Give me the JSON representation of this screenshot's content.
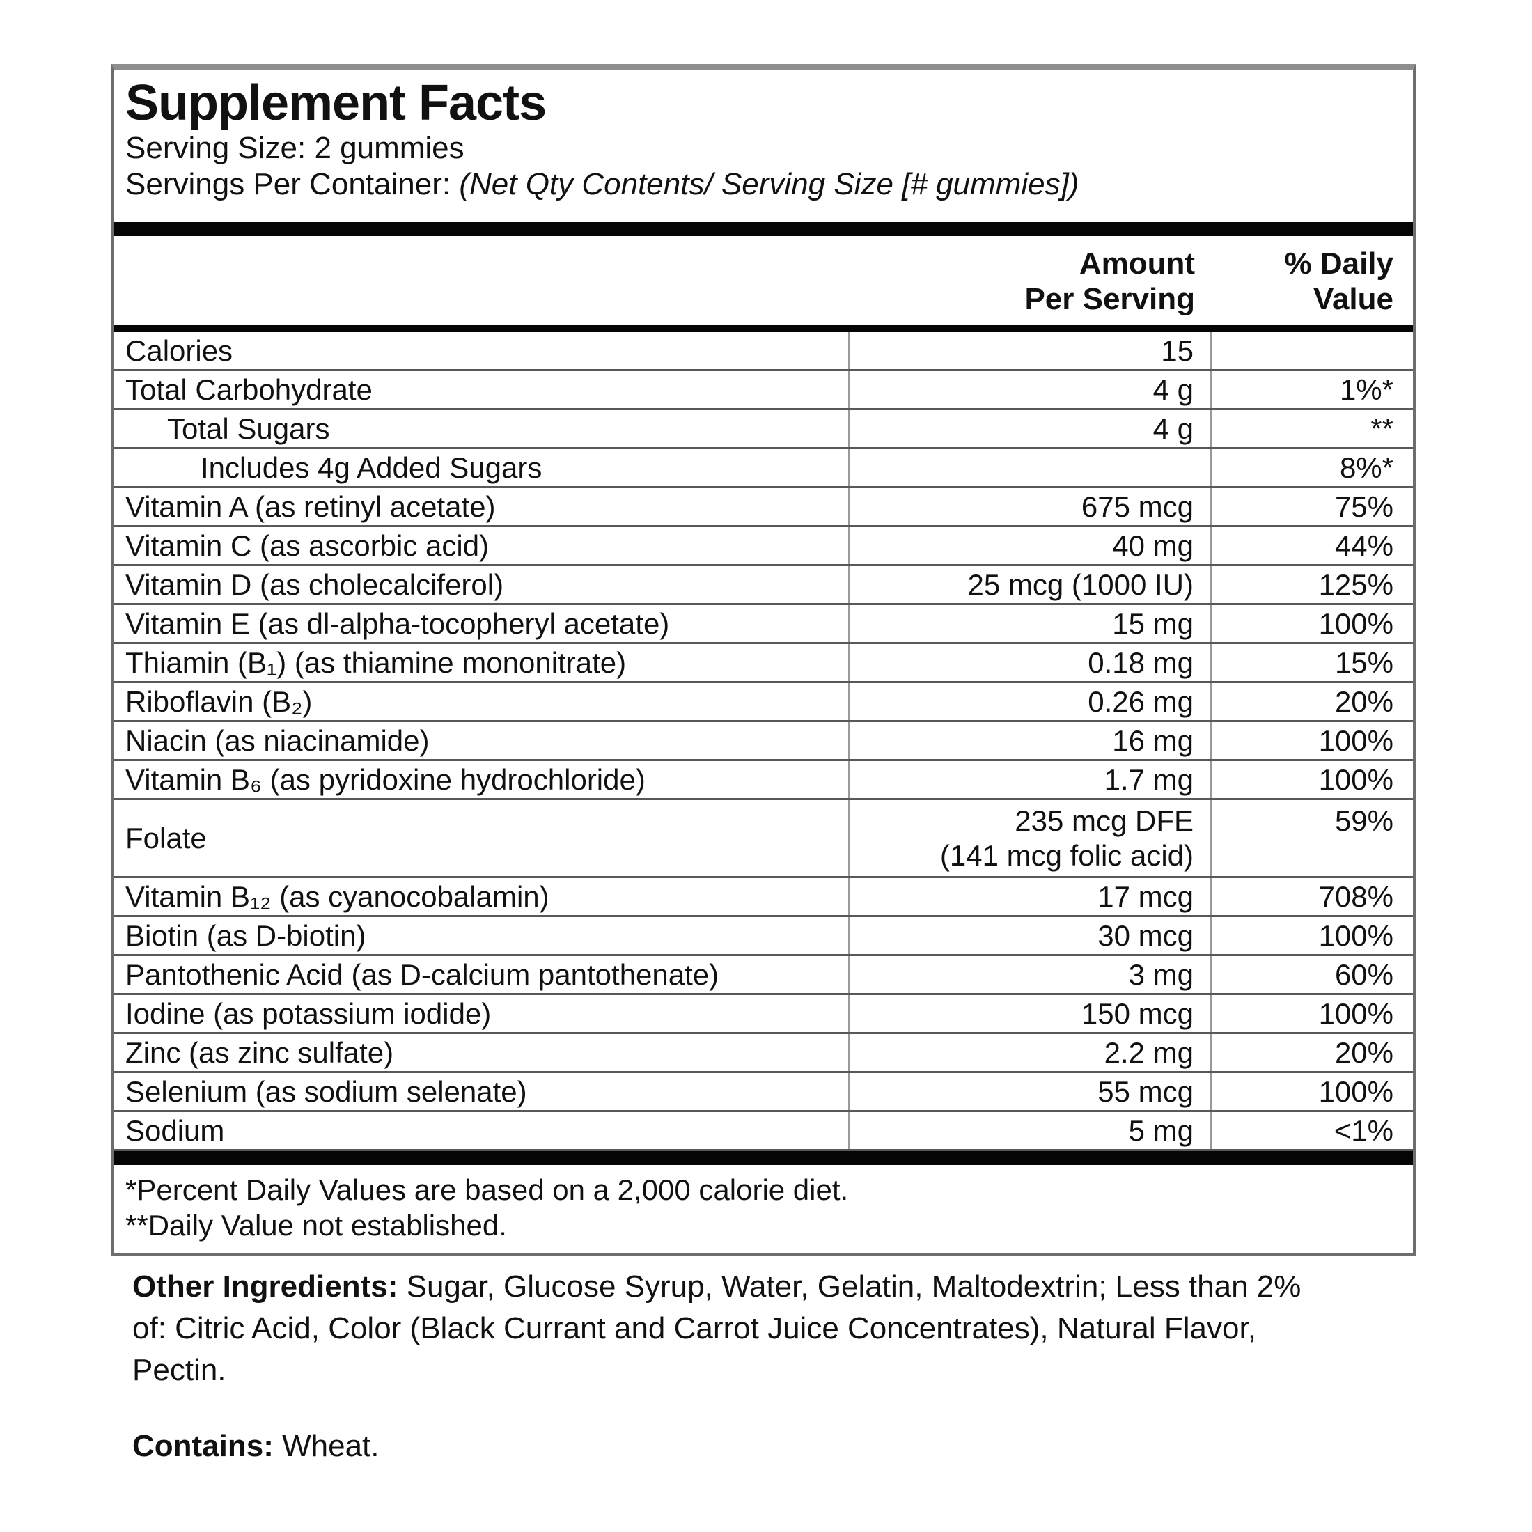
{
  "label": {
    "title": "Supplement Facts",
    "serving_size": "Serving Size: 2 gummies",
    "servings_prefix": "Servings Per Container: ",
    "servings_italic": "(Net Qty Contents/ Serving Size [# gummies])",
    "columns": {
      "amount": [
        "Amount",
        "Per Serving"
      ],
      "daily_value": [
        "% Daily",
        "Value"
      ]
    },
    "rows": [
      {
        "name": "Calories",
        "amount": "15",
        "dv": ""
      },
      {
        "name": "Total Carbohydrate",
        "amount": "4 g",
        "dv": "1%*"
      },
      {
        "name": "Total Sugars",
        "amount": "4 g",
        "dv": "**",
        "indent": 1
      },
      {
        "name": "Includes 4g Added Sugars",
        "amount": "",
        "dv": "8%*",
        "indent": 2
      },
      {
        "name": "Vitamin A (as retinyl acetate)",
        "amount": "675 mcg",
        "dv": "75%"
      },
      {
        "name": "Vitamin C (as ascorbic acid)",
        "amount": "40 mg",
        "dv": "44%"
      },
      {
        "name": "Vitamin D (as cholecalciferol)",
        "amount": "25 mcg (1000 IU)",
        "dv": "125%"
      },
      {
        "name": "Vitamin E (as dl-alpha-tocopheryl acetate)",
        "amount": "15 mg",
        "dv": "100%"
      },
      {
        "name": "Thiamin (B₁) (as thiamine mononitrate)",
        "amount": "0.18 mg",
        "dv": "15%"
      },
      {
        "name": "Riboflavin (B₂)",
        "amount": "0.26 mg",
        "dv": "20%"
      },
      {
        "name": "Niacin (as niacinamide)",
        "amount": "16 mg",
        "dv": "100%"
      },
      {
        "name": "Vitamin B₆ (as pyridoxine hydrochloride)",
        "amount": "1.7 mg",
        "dv": "100%"
      },
      {
        "name": "Folate",
        "amount": "235 mcg DFE",
        "amount2": "(141 mcg folic acid)",
        "dv": "59%"
      },
      {
        "name": "Vitamin B₁₂ (as cyanocobalamin)",
        "amount": "17 mcg",
        "dv": "708%"
      },
      {
        "name": "Biotin (as D-biotin)",
        "amount": "30 mcg",
        "dv": "100%"
      },
      {
        "name": "Pantothenic Acid (as D-calcium pantothenate)",
        "amount": "3 mg",
        "dv": "60%"
      },
      {
        "name": "Iodine (as potassium iodide)",
        "amount": "150 mcg",
        "dv": "100%"
      },
      {
        "name": "Zinc (as zinc sulfate)",
        "amount": "2.2 mg",
        "dv": "20%"
      },
      {
        "name": "Selenium (as sodium selenate)",
        "amount": "55 mcg",
        "dv": "100%"
      },
      {
        "name": "Sodium",
        "amount": "5 mg",
        "dv": "<1%"
      }
    ],
    "footnotes": [
      "*Percent Daily Values are based on a 2,000 calorie diet.",
      "**Daily Value not established."
    ],
    "other_ingredients": {
      "label": "Other Ingredients:",
      "text": " Sugar, Glucose Syrup, Water, Gelatin, Maltodextrin; Less than 2% of: Citric Acid, Color (Black Currant and Carrot Juice Concentrates), Natural Flavor, Pectin."
    },
    "contains": {
      "label": "Contains:",
      "text": " Wheat."
    }
  }
}
